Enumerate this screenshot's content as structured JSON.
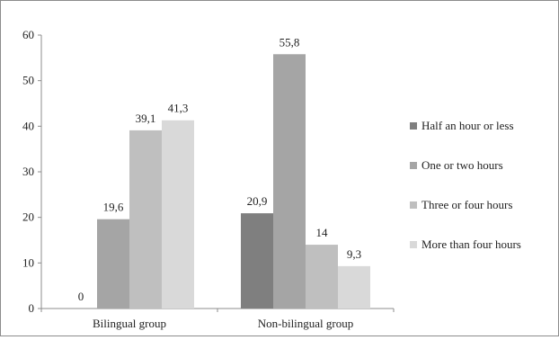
{
  "chart_data": {
    "type": "bar",
    "categories": [
      "Bilingual group",
      "Non-bilingual group"
    ],
    "series": [
      {
        "name": "Half an hour or less",
        "values": [
          0,
          20.9
        ],
        "labels": [
          "0",
          "20,9"
        ],
        "color": "#7f7f7f"
      },
      {
        "name": "One or two hours",
        "values": [
          19.6,
          55.8
        ],
        "labels": [
          "19,6",
          "55,8"
        ],
        "color": "#a5a5a5"
      },
      {
        "name": "Three or four hours",
        "values": [
          39.1,
          14
        ],
        "labels": [
          "39,1",
          "14"
        ],
        "color": "#bfbfbf"
      },
      {
        "name": "More than four hours",
        "values": [
          41.3,
          9.3
        ],
        "labels": [
          "41,3",
          "9,3"
        ],
        "color": "#d9d9d9"
      }
    ],
    "y_ticks": [
      "0",
      "10",
      "20",
      "30",
      "40",
      "50",
      "60"
    ],
    "ylim": [
      0,
      60
    ],
    "grid": false,
    "legend_position": "right"
  }
}
